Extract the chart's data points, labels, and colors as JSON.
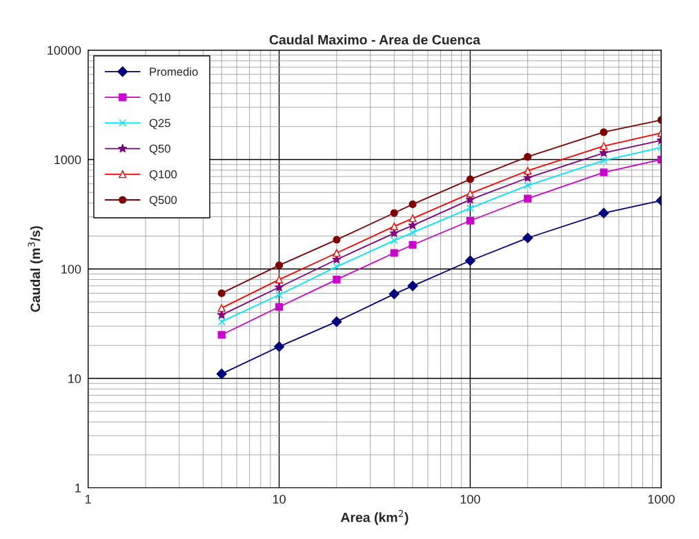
{
  "chart_data": {
    "type": "line",
    "title": "Caudal Maximo - Area de Cuenca",
    "xlabel": "Area (km$^{2}$)",
    "ylabel": "Caudal (m$^{3}$/s)",
    "x": [
      5,
      10,
      20,
      40,
      50,
      100,
      200,
      500,
      1000
    ],
    "series": [
      {
        "name": "Promedio",
        "color": "#000080",
        "marker": "diamond",
        "values": [
          11,
          19.5,
          33,
          59,
          70,
          119,
          192,
          324,
          422
        ]
      },
      {
        "name": "Q10",
        "color": "#cc00cc",
        "marker": "square",
        "values": [
          25,
          45,
          80,
          140,
          166,
          276,
          440,
          764,
          1000
        ]
      },
      {
        "name": "Q25",
        "color": "#00e5ff",
        "marker": "cross",
        "values": [
          33,
          58,
          105,
          182,
          215,
          360,
          580,
          980,
          1290
        ]
      },
      {
        "name": "Q50",
        "color": "#800080",
        "marker": "star",
        "values": [
          38,
          68,
          122,
          212,
          250,
          430,
          680,
          1150,
          1500
        ]
      },
      {
        "name": "Q100",
        "color": "#ff0000",
        "marker": "triangle",
        "values": [
          44,
          80,
          140,
          245,
          290,
          490,
          790,
          1330,
          1750
        ]
      },
      {
        "name": "Q500",
        "color": "#800000",
        "marker": "circle",
        "values": [
          60,
          108,
          185,
          325,
          390,
          660,
          1060,
          1780,
          2300
        ]
      }
    ],
    "log": "xy",
    "xlim": [
      1,
      1000
    ],
    "ylim": [
      1,
      10000
    ],
    "xticks": [
      1,
      10,
      100,
      1000
    ],
    "yticks": [
      1,
      10,
      100,
      1000,
      10000
    ],
    "grid": true,
    "legend": "top left"
  }
}
